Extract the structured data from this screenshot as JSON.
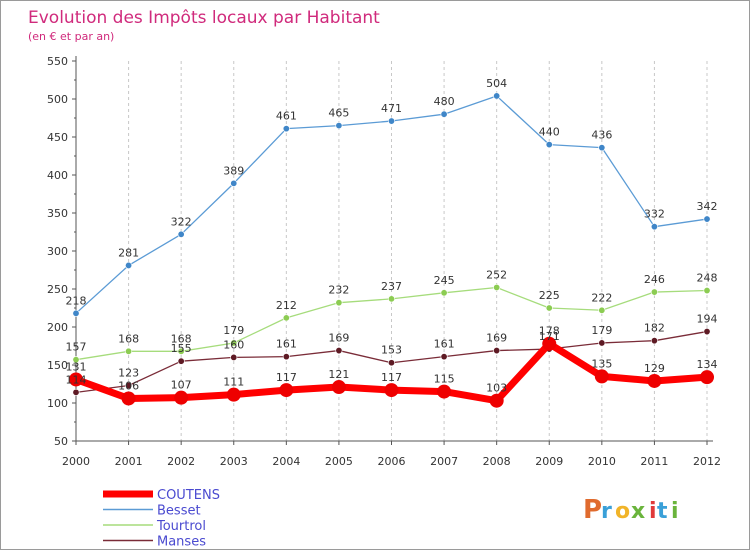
{
  "chart_data": {
    "type": "line",
    "title": "Evolution des Impôts locaux par Habitant",
    "subtitle": "(en € et par an)",
    "xlabel": "",
    "ylabel": "",
    "ylim": [
      50,
      550
    ],
    "y_ticks": [
      50,
      100,
      150,
      200,
      250,
      300,
      350,
      400,
      450,
      500,
      550
    ],
    "grid": "vertical dashed",
    "legend_position": "bottom-left",
    "categories": [
      "2000",
      "2001",
      "2002",
      "2003",
      "2004",
      "2005",
      "2006",
      "2007",
      "2008",
      "2009",
      "2010",
      "2011",
      "2012"
    ],
    "series": [
      {
        "name": "Besset",
        "color": "#5b9bd5",
        "marker": "#3f86c8",
        "values": [
          218,
          281,
          322,
          389,
          461,
          465,
          471,
          480,
          504,
          440,
          436,
          332,
          342
        ]
      },
      {
        "name": "Tourtrol",
        "color": "#a6dc7c",
        "marker": "#8ccc52",
        "values": [
          157,
          168,
          168,
          179,
          212,
          232,
          237,
          245,
          252,
          225,
          222,
          246,
          248
        ]
      },
      {
        "name": "Manses",
        "color": "#7a2c38",
        "marker": "#5e1a24",
        "values": [
          114,
          123,
          155,
          160,
          161,
          169,
          153,
          161,
          169,
          171,
          179,
          182,
          194
        ]
      },
      {
        "name": "COUTENS",
        "color": "#ff0000",
        "marker": "#ee0000",
        "values": [
          131,
          106,
          107,
          111,
          117,
          121,
          117,
          115,
          103,
          178,
          135,
          129,
          134
        ]
      }
    ],
    "legend_order": [
      "COUTENS",
      "Besset",
      "Tourtrol",
      "Manses"
    ]
  },
  "brand": {
    "letters": [
      "P",
      "r",
      "o",
      "x",
      "i",
      "t",
      "i"
    ],
    "colors": [
      "#e06b2e",
      "#3aa0d8",
      "#f1b429",
      "#6ab43c",
      "#e03a3a",
      "#3aa0d8",
      "#6ab43c"
    ]
  },
  "colors": {
    "title": "#d02a7c",
    "axis": "#555555",
    "tick_text": "#333333",
    "label_text": "#333333",
    "legend_text": "#4a4ad0",
    "grid": "#c8c8c8"
  }
}
